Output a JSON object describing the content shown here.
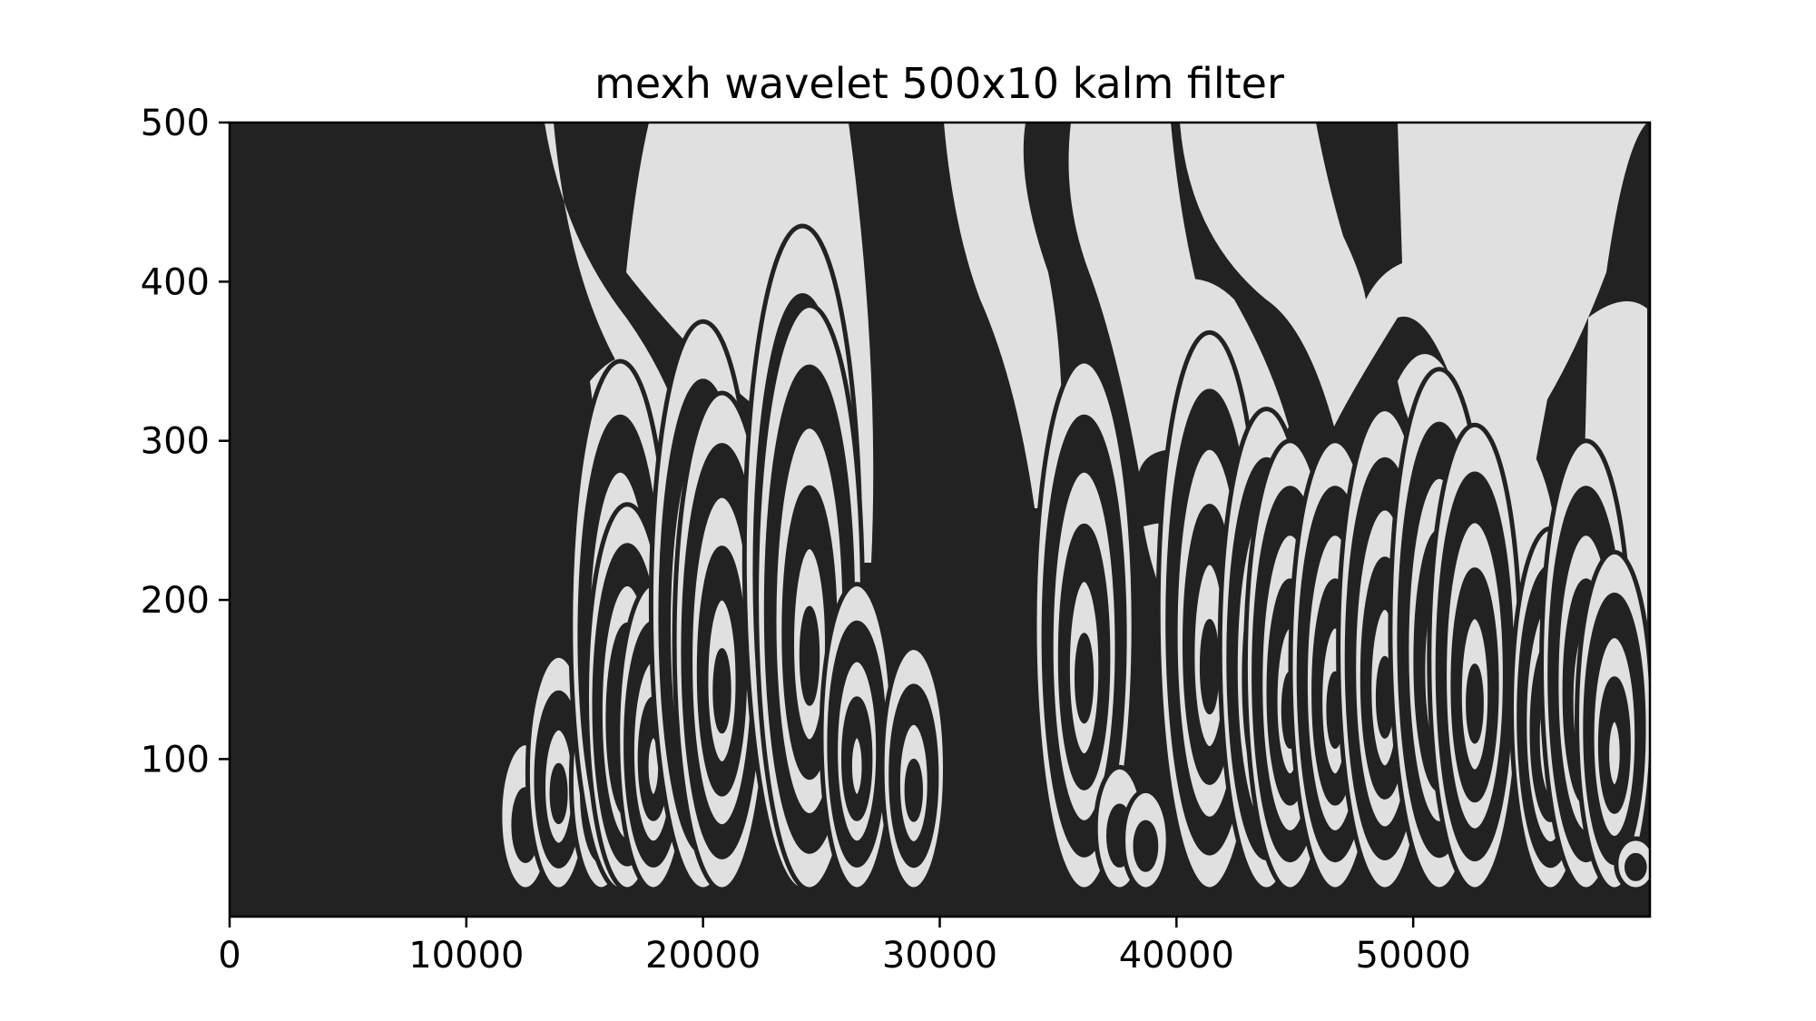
{
  "chart_data": {
    "type": "heatmap",
    "title": "mexh wavelet 500x10 kalm filter",
    "xlabel": "",
    "ylabel": "",
    "xlim": [
      0,
      60000
    ],
    "ylim": [
      1,
      500
    ],
    "x_ticks": [
      0,
      10000,
      20000,
      30000,
      40000,
      50000
    ],
    "x_tick_labels": [
      "0",
      "10000",
      "20000",
      "30000",
      "40000",
      "50000"
    ],
    "y_ticks": [
      100,
      200,
      300,
      400,
      500
    ],
    "y_tick_labels": [
      "100",
      "200",
      "300",
      "400",
      "500"
    ],
    "grid": false,
    "colors": {
      "low": "#222222",
      "high": "#e0e0e0",
      "axes": "#000000"
    },
    "signal_onset_x": 12400,
    "region_peaks": [
      {
        "x": 12500,
        "y": 110
      },
      {
        "x": 13900,
        "y": 165
      },
      {
        "x": 15700,
        "y": 155
      },
      {
        "x": 16500,
        "y": 350
      },
      {
        "x": 16800,
        "y": 260
      },
      {
        "x": 17900,
        "y": 210
      },
      {
        "x": 20000,
        "y": 375
      },
      {
        "x": 20800,
        "y": 330
      },
      {
        "x": 24200,
        "y": 435
      },
      {
        "x": 24500,
        "y": 385
      },
      {
        "x": 26500,
        "y": 210
      },
      {
        "x": 28900,
        "y": 170
      },
      {
        "x": 36100,
        "y": 350
      },
      {
        "x": 37600,
        "y": 95
      },
      {
        "x": 38700,
        "y": 80
      },
      {
        "x": 41400,
        "y": 368
      },
      {
        "x": 43800,
        "y": 320
      },
      {
        "x": 44800,
        "y": 300
      },
      {
        "x": 46700,
        "y": 300
      },
      {
        "x": 48800,
        "y": 320
      },
      {
        "x": 51100,
        "y": 345
      },
      {
        "x": 52600,
        "y": 310
      },
      {
        "x": 55800,
        "y": 245
      },
      {
        "x": 57300,
        "y": 300
      },
      {
        "x": 58500,
        "y": 230
      },
      {
        "x": 59400,
        "y": 50
      }
    ]
  }
}
